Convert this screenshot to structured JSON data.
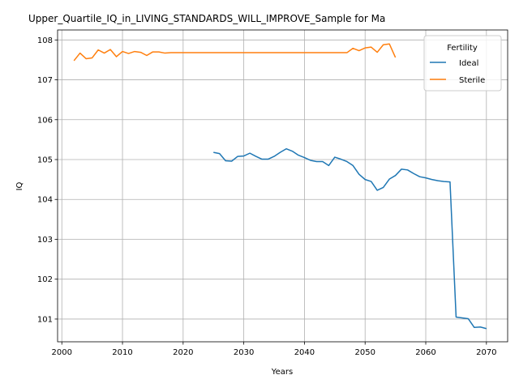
{
  "chart_data": {
    "type": "line",
    "title": "Upper_Quartile_IQ_in_LIVING_STANDARDS_WILL_IMPROVE_Sample for Ma",
    "xlabel": "Years",
    "ylabel": "IQ",
    "xlim": [
      1999.3,
      2073.5
    ],
    "ylim": [
      100.43,
      108.25
    ],
    "xticks": [
      2000,
      2010,
      2020,
      2030,
      2040,
      2050,
      2060,
      2070
    ],
    "yticks": [
      101,
      102,
      103,
      104,
      105,
      106,
      107,
      108
    ],
    "grid": true,
    "legend": {
      "title": "Fertility",
      "placement": "top-right"
    },
    "series": [
      {
        "name": "Ideal",
        "color": "#1f77b4",
        "x": [
          2025,
          2026,
          2027,
          2028,
          2029,
          2030,
          2031,
          2032,
          2033,
          2034,
          2035,
          2036,
          2037,
          2038,
          2039,
          2040,
          2041,
          2042,
          2043,
          2044,
          2045,
          2046,
          2047,
          2048,
          2049,
          2050,
          2051,
          2052,
          2053,
          2054,
          2055,
          2056,
          2057,
          2058,
          2059,
          2060,
          2061,
          2062,
          2063,
          2064,
          2065,
          2066,
          2067,
          2068,
          2069,
          2070
        ],
        "y": [
          105.18,
          105.15,
          104.97,
          104.96,
          105.08,
          105.09,
          105.16,
          105.08,
          105.01,
          105.01,
          105.08,
          105.18,
          105.27,
          105.21,
          105.11,
          105.05,
          104.98,
          104.95,
          104.95,
          104.85,
          105.06,
          105.01,
          104.95,
          104.85,
          104.63,
          104.5,
          104.45,
          104.23,
          104.3,
          104.51,
          104.6,
          104.76,
          104.74,
          104.65,
          104.57,
          104.54,
          104.5,
          104.47,
          104.45,
          104.44,
          101.05,
          101.03,
          101.01,
          100.79,
          100.8,
          100.76
        ]
      },
      {
        "name": "Sterile",
        "color": "#ff7f0e",
        "x": [
          2002,
          2003,
          2004,
          2005,
          2006,
          2007,
          2008,
          2009,
          2010,
          2011,
          2012,
          2013,
          2014,
          2015,
          2016,
          2017,
          2018,
          2019,
          2020,
          2021,
          2022,
          2023,
          2024,
          2025,
          2026,
          2027,
          2028,
          2029,
          2030,
          2031,
          2032,
          2033,
          2034,
          2035,
          2036,
          2037,
          2038,
          2039,
          2040,
          2041,
          2042,
          2043,
          2044,
          2045,
          2046,
          2047,
          2048,
          2049,
          2050,
          2051,
          2052,
          2053,
          2054,
          2055
        ],
        "y": [
          107.48,
          107.67,
          107.53,
          107.55,
          107.75,
          107.67,
          107.76,
          107.58,
          107.71,
          107.66,
          107.71,
          107.69,
          107.61,
          107.7,
          107.7,
          107.67,
          107.68,
          107.68,
          107.68,
          107.68,
          107.68,
          107.68,
          107.68,
          107.68,
          107.68,
          107.68,
          107.68,
          107.68,
          107.68,
          107.68,
          107.68,
          107.68,
          107.68,
          107.68,
          107.68,
          107.68,
          107.68,
          107.68,
          107.68,
          107.68,
          107.68,
          107.68,
          107.68,
          107.68,
          107.68,
          107.68,
          107.79,
          107.73,
          107.8,
          107.82,
          107.69,
          107.88,
          107.9,
          107.56
        ]
      }
    ]
  }
}
